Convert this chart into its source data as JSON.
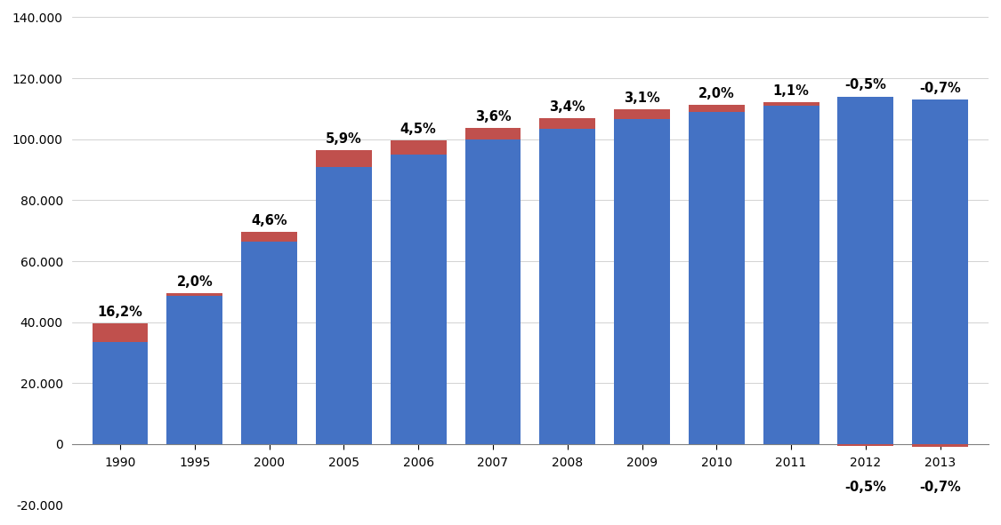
{
  "years": [
    1990,
    1995,
    2000,
    2005,
    2006,
    2007,
    2008,
    2009,
    2010,
    2011,
    2012,
    2013
  ],
  "blue_values": [
    33500,
    48500,
    66500,
    91000,
    95000,
    100000,
    103500,
    106500,
    109000,
    111000,
    114000,
    113000
  ],
  "red_values": [
    6000,
    1000,
    3000,
    5500,
    4500,
    3600,
    3500,
    3300,
    2200,
    1200,
    -600,
    -800
  ],
  "labels": [
    "16,2%",
    "2,0%",
    "4,6%",
    "5,9%",
    "4,5%",
    "3,6%",
    "3,4%",
    "3,1%",
    "2,0%",
    "1,1%",
    "-0,5%",
    "-0,7%"
  ],
  "blue_color": "#4472C4",
  "red_color": "#C0504D",
  "ylim": [
    -20000,
    140000
  ],
  "yticks": [
    -20000,
    0,
    20000,
    40000,
    60000,
    80000,
    100000,
    120000,
    140000
  ],
  "ytick_labels": [
    "-20.000",
    "0",
    "20.000",
    "40.000",
    "60.000",
    "80.000",
    "100.000",
    "120.000",
    "140.000"
  ],
  "bar_width": 0.75
}
